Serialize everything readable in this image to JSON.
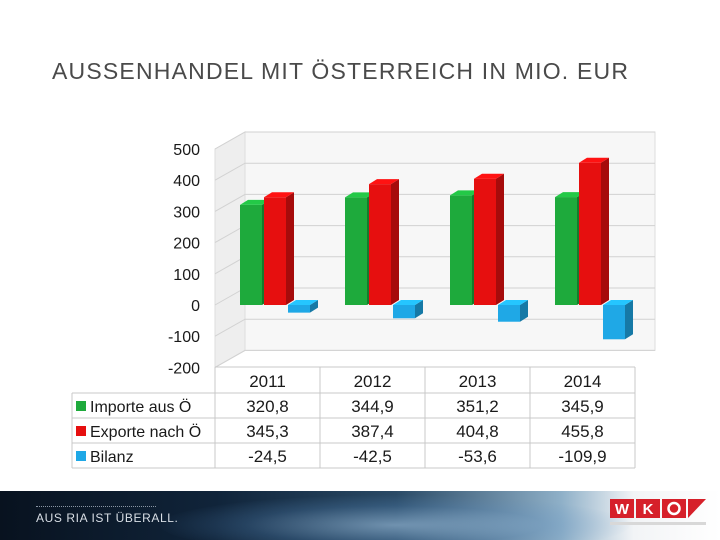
{
  "page": {
    "title": "AUSSENHANDEL MIT ÖSTERREICH IN MIO. EUR"
  },
  "footer": {
    "slogan": "AUS RIA IST ÜBERALL.",
    "logo_text": "WKO"
  },
  "colors": {
    "importe": "#1eaa3c",
    "exporte": "#e60f0f",
    "bilanz": "#1fa8e6",
    "logo_red": "#d6202a"
  },
  "chart_data": {
    "type": "bar",
    "categories": [
      "2011",
      "2012",
      "2013",
      "2014"
    ],
    "series": [
      {
        "name": "Importe aus Ö",
        "values": [
          320.8,
          344.9,
          351.2,
          345.9
        ],
        "labels": [
          "320,8",
          "344,9",
          "351,2",
          "345,9"
        ]
      },
      {
        "name": "Exporte nach Ö",
        "values": [
          345.3,
          387.4,
          404.8,
          455.8
        ],
        "labels": [
          "345,3",
          "387,4",
          "404,8",
          "455,8"
        ]
      },
      {
        "name": "Bilanz",
        "values": [
          -24.5,
          -42.5,
          -53.6,
          -109.9
        ],
        "labels": [
          "-24,5",
          "-42,5",
          "-53,6",
          "-109,9"
        ]
      }
    ],
    "y_ticks": [
      "500",
      "400",
      "300",
      "200",
      "100",
      "0",
      "-100",
      "-200"
    ],
    "ylim": [
      -200,
      500
    ],
    "grid": true,
    "legend": "data table below chart"
  }
}
